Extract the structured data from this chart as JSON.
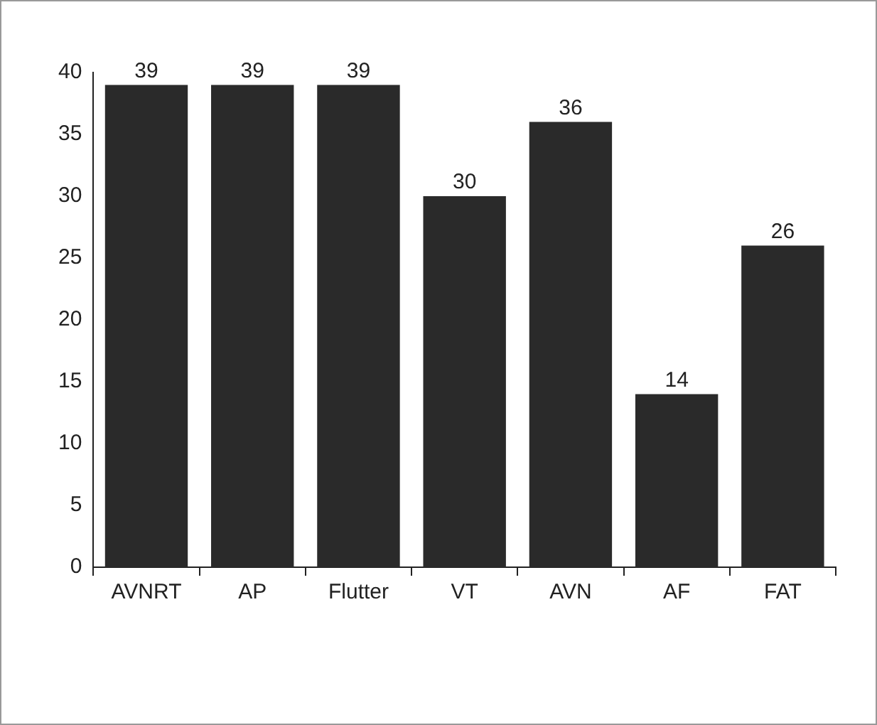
{
  "chart_data": {
    "type": "bar",
    "categories": [
      "AVNRT",
      "AP",
      "Flutter",
      "VT",
      "AVN",
      "AF",
      "FAT"
    ],
    "values": [
      39,
      39,
      39,
      30,
      36,
      14,
      26
    ],
    "color": "#2a2a2a",
    "ylim": [
      0,
      40
    ],
    "yticks": [
      0,
      5,
      10,
      15,
      20,
      25,
      30,
      35,
      40
    ],
    "grid": false,
    "legend": false,
    "data_labels": true
  }
}
